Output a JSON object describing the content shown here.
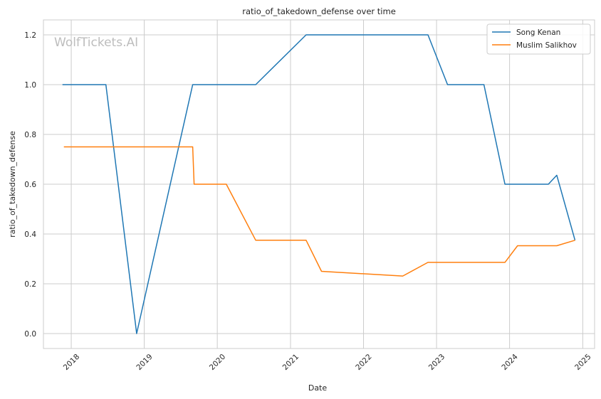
{
  "chart_data": {
    "type": "line",
    "title": "ratio_of_takedown_defense over time",
    "xlabel": "Date",
    "ylabel": "ratio_of_takedown_defense",
    "watermark": "WolfTickets.AI",
    "x_ticks": [
      "2018",
      "2019",
      "2020",
      "2021",
      "2022",
      "2023",
      "2024",
      "2025"
    ],
    "y_ticks": [
      "0.0",
      "0.2",
      "0.4",
      "0.6",
      "0.8",
      "1.0",
      "1.2"
    ],
    "ylim": [
      -0.06,
      1.26
    ],
    "xlim": [
      "2017-08-15",
      "2025-03-01"
    ],
    "grid": true,
    "legend_position": "top-right",
    "series": [
      {
        "name": "Song Kenan",
        "color": "#1f77b4",
        "points": [
          [
            "2017-11-18",
            1.0
          ],
          [
            "2018-06-23",
            1.0
          ],
          [
            "2018-11-24",
            0.0
          ],
          [
            "2019-08-31",
            1.0
          ],
          [
            "2020-07-11",
            1.0
          ],
          [
            "2021-03-20",
            1.2
          ],
          [
            "2022-11-19",
            1.2
          ],
          [
            "2023-02-25",
            1.0
          ],
          [
            "2023-08-26",
            1.0
          ],
          [
            "2023-12-09",
            0.6
          ],
          [
            "2024-07-13",
            0.6
          ],
          [
            "2024-08-24",
            0.636
          ],
          [
            "2024-11-23",
            0.375
          ]
        ]
      },
      {
        "name": "Muslim Salikhov",
        "color": "#ff7f0e",
        "points": [
          [
            "2017-11-25",
            0.75
          ],
          [
            "2019-08-31",
            0.75
          ],
          [
            "2019-09-07",
            0.6
          ],
          [
            "2020-02-15",
            0.6
          ],
          [
            "2020-07-11",
            0.375
          ],
          [
            "2021-03-20",
            0.375
          ],
          [
            "2021-06-05",
            0.25
          ],
          [
            "2022-07-16",
            0.231
          ],
          [
            "2022-11-19",
            0.286
          ],
          [
            "2023-12-09",
            0.286
          ],
          [
            "2024-02-10",
            0.353
          ],
          [
            "2024-08-24",
            0.353
          ],
          [
            "2024-11-23",
            0.375
          ]
        ]
      }
    ]
  }
}
